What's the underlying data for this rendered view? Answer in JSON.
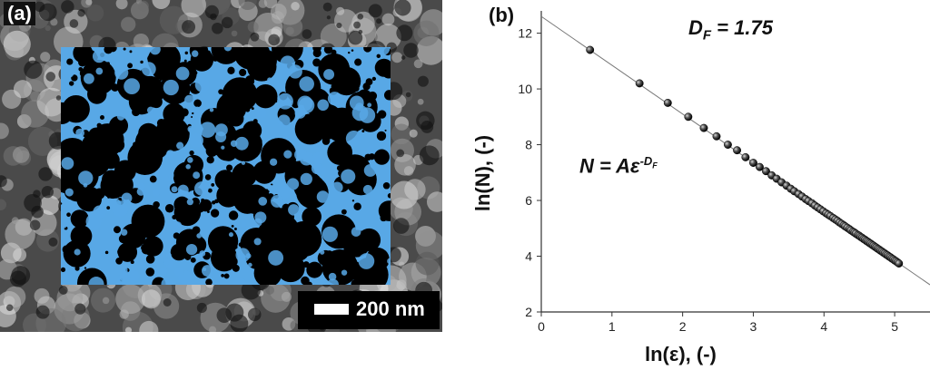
{
  "panel_a": {
    "label": "(a)",
    "scale_bar": {
      "text": "200 nm"
    },
    "colors": {
      "overlay": "#58a8e6",
      "pores": "#000000",
      "background": "#9a9a9a"
    }
  },
  "panel_b": {
    "label": "(b)",
    "annotation_df": {
      "symbol": "D",
      "sub": "F",
      "value": " = 1.75"
    },
    "annotation_eq": {
      "lhs": "N = A",
      "eps": "ε",
      "exp_sign": "-",
      "exp_sym": "D",
      "exp_sub": "F"
    }
  },
  "chart_data": {
    "type": "scatter",
    "title": "",
    "xlabel": "ln(ε), (-)",
    "ylabel": "ln(N), (-)",
    "xlim": [
      0,
      5.5
    ],
    "ylim": [
      2,
      12.8
    ],
    "xticks": [
      0,
      1,
      2,
      3,
      4,
      5
    ],
    "yticks": [
      2,
      4,
      6,
      8,
      10,
      12
    ],
    "grid": false,
    "fit_line": {
      "slope": -1.75,
      "intercept": 12.6
    },
    "series": [
      {
        "x": [
          0.69,
          1.39,
          1.79,
          2.08,
          2.3,
          2.48,
          2.64,
          2.77,
          2.89,
          3.0,
          3.09,
          3.18,
          3.26,
          3.33,
          3.4,
          3.47,
          3.53,
          3.58,
          3.64,
          3.69,
          3.74,
          3.78,
          3.83,
          3.87,
          3.91,
          3.95,
          3.99,
          4.03,
          4.06,
          4.09,
          4.13,
          4.16,
          4.19,
          4.22,
          4.25,
          4.28,
          4.3,
          4.33,
          4.36,
          4.38,
          4.41,
          4.43,
          4.45,
          4.48,
          4.5,
          4.52,
          4.54,
          4.56,
          4.58,
          4.6,
          4.62,
          4.64,
          4.66,
          4.68,
          4.7,
          4.72,
          4.74,
          4.76,
          4.78,
          4.8,
          4.82,
          4.84,
          4.86,
          4.88,
          4.9,
          4.92,
          4.94,
          4.96,
          4.98,
          5.0,
          5.02,
          5.04,
          5.06
        ],
        "y": [
          11.4,
          10.2,
          9.5,
          9.0,
          8.6,
          8.3,
          8.0,
          7.8,
          7.55,
          7.35,
          7.2,
          7.05,
          6.9,
          6.78,
          6.65,
          6.53,
          6.42,
          6.33,
          6.23,
          6.14,
          6.05,
          5.98,
          5.9,
          5.82,
          5.75,
          5.68,
          5.61,
          5.54,
          5.49,
          5.44,
          5.37,
          5.32,
          5.27,
          5.21,
          5.16,
          5.11,
          5.07,
          5.02,
          4.97,
          4.93,
          4.88,
          4.85,
          4.81,
          4.76,
          4.73,
          4.69,
          4.66,
          4.62,
          4.59,
          4.55,
          4.52,
          4.48,
          4.45,
          4.41,
          4.38,
          4.34,
          4.31,
          4.27,
          4.24,
          4.2,
          4.17,
          4.13,
          4.1,
          4.06,
          4.03,
          3.99,
          3.96,
          3.92,
          3.89,
          3.85,
          3.82,
          3.78,
          3.74
        ]
      }
    ]
  }
}
